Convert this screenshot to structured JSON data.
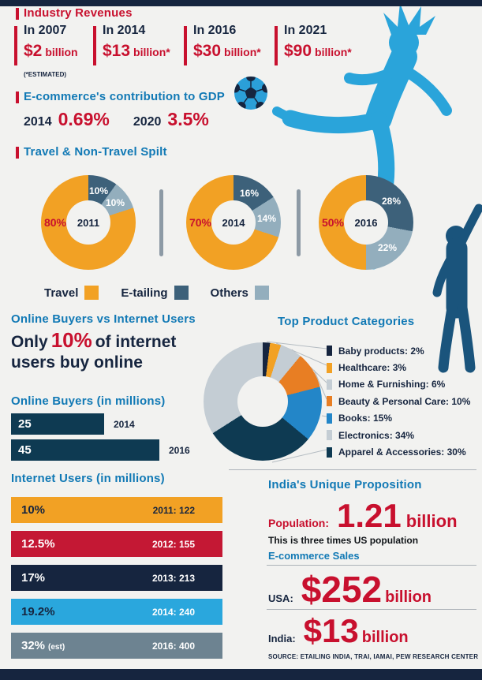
{
  "colors": {
    "navy": "#16253f",
    "red": "#c8102e",
    "blue_header": "#1179b5",
    "orange": "#f2a124",
    "etailing": "#3d617a",
    "others": "#93aebd",
    "bar_teal": "#0e3a52",
    "silhouette_light": "#2aa4da",
    "silhouette_dark": "#1a547c"
  },
  "industry_revenues": {
    "title": "Industry Revenues",
    "footnote": "(*ESTIMATED)",
    "items": [
      {
        "period": "In 2007",
        "amount": "$2",
        "unit": "billion"
      },
      {
        "period": "In 2014",
        "amount": "$13",
        "unit": "billion*"
      },
      {
        "period": "In 2016",
        "amount": "$30",
        "unit": "billion*"
      },
      {
        "period": "In 2021",
        "amount": "$90",
        "unit": "billion*"
      }
    ]
  },
  "gdp": {
    "title": "E-commerce's contribution to GDP",
    "items": [
      {
        "year": "2014",
        "value": "0.69%"
      },
      {
        "year": "2020",
        "value": "3.5%"
      }
    ]
  },
  "online_vs_internet": {
    "title": "Online Buyers vs Internet Users",
    "line1_pre": "Only ",
    "highlight": "10%",
    "line1_post": " of internet",
    "line2": "users buy online"
  },
  "india_proposition": {
    "title": "India's Unique Proposition",
    "population_label": "Population:",
    "population_value": "1.21",
    "population_unit": "billion",
    "population_note": "This is three times US population",
    "sales_label": "E-commerce Sales",
    "usa_label": "USA:",
    "usa_value": "$252",
    "usa_unit": "billion",
    "india_label": "India:",
    "india_value": "$13",
    "india_unit": "billion",
    "source": "SOURCE: ETAILING INDIA, TRAI, IAMAI, PEW RESEARCH CENTER"
  },
  "chart_data": [
    {
      "id": "travel_split",
      "type": "pie",
      "title": "Travel & Non-Travel Spilt",
      "legend": [
        "Travel",
        "E-tailing",
        "Others"
      ],
      "colors": {
        "Travel": "#f2a124",
        "E-tailing": "#3d617a",
        "Others": "#93aebd"
      },
      "donuts": [
        {
          "year": "2011",
          "values": {
            "Travel": 80,
            "E-tailing": 10,
            "Others": 10
          },
          "labels": {
            "Travel": "80%",
            "E-tailing": "10%",
            "Others": "10%"
          }
        },
        {
          "year": "2014",
          "values": {
            "Travel": 70,
            "E-tailing": 16,
            "Others": 14
          },
          "labels": {
            "Travel": "70%",
            "E-tailing": "16%",
            "Others": "14%"
          }
        },
        {
          "year": "2016",
          "values": {
            "Travel": 50,
            "E-tailing": 28,
            "Others": 22
          },
          "labels": {
            "Travel": "50%",
            "E-tailing": "28%",
            "Others": "22%"
          }
        }
      ]
    },
    {
      "id": "top_product_categories",
      "type": "pie",
      "title": "Top Product Categories",
      "slices": [
        {
          "label": "Baby products",
          "value": 2,
          "display": "Baby products: 2%",
          "color": "#16253f"
        },
        {
          "label": "Healthcare",
          "value": 3,
          "display": "Healthcare: 3%",
          "color": "#f2a124"
        },
        {
          "label": "Home & Furnishing",
          "value": 6,
          "display": "Home & Furnishing: 6%",
          "color": "#c4cdd4"
        },
        {
          "label": "Beauty & Personal Care",
          "value": 10,
          "display": "Beauty & Personal Care: 10%",
          "color": "#e87e23"
        },
        {
          "label": "Books",
          "value": 15,
          "display": "Books: 15%",
          "color": "#2386c8"
        },
        {
          "label": "Electronics",
          "value": 34,
          "display": "Electronics: 34%",
          "color": "#c4cdd4"
        },
        {
          "label": "Apparel & Accessories",
          "value": 30,
          "display": "Apparel & Accessories: 30%",
          "color": "#0e3a52"
        }
      ],
      "draw_order": [
        "Baby products",
        "Healthcare",
        "Home & Furnishing",
        "Beauty & Personal Care",
        "Books",
        "Apparel & Accessories",
        "Electronics"
      ]
    },
    {
      "id": "online_buyers",
      "type": "bar",
      "title": "Online Buyers (in millions)",
      "categories": [
        "2014",
        "2016"
      ],
      "values": [
        25,
        45
      ],
      "color": "#0e3a52"
    },
    {
      "id": "internet_users",
      "type": "bar",
      "title": "Internet Users (in millions)",
      "years": [
        2011,
        2012,
        2013,
        2014,
        2016
      ],
      "users_millions": [
        122,
        155,
        213,
        240,
        400
      ],
      "pct_of_population": [
        10,
        12.5,
        17,
        19.2,
        32
      ],
      "rows": [
        {
          "pct": "10%",
          "suffix": "",
          "label": "2011: 122",
          "color": "#f2a124",
          "text_color": "#16253f",
          "label_color": "#16253f"
        },
        {
          "pct": "12.5%",
          "suffix": "",
          "label": "2012: 155",
          "color": "#c41834",
          "text_color": "#ffffff",
          "label_color": "#ffffff"
        },
        {
          "pct": "17%",
          "suffix": "",
          "label": "2013: 213",
          "color": "#16253f",
          "text_color": "#ffffff",
          "label_color": "#ffffff"
        },
        {
          "pct": "19.2%",
          "suffix": "",
          "label": "2014: 240",
          "color": "#2aa7dd",
          "text_color": "#16253f",
          "label_color": "#ffffff"
        },
        {
          "pct": "32%",
          "suffix": "(est)",
          "label": "2016: 400",
          "color": "#6d8391",
          "text_color": "#ffffff",
          "label_color": "#ffffff"
        }
      ]
    }
  ]
}
